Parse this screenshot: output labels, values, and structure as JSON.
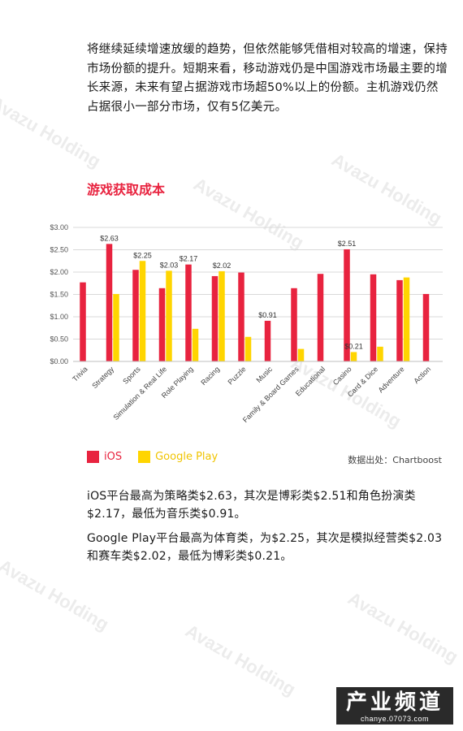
{
  "intro_text": "将继续延续增速放缓的趋势，但依然能够凭借相对较高的增速，保持市场份额的提升。短期来看，移动游戏仍是中国游戏市场最主要的增长来源，未来有望占据游戏市场超50%以上的份额。主机游戏仍然占据很小一部分市场，仅有5亿美元。",
  "section_title": "游戏获取成本",
  "chart_data": {
    "type": "bar",
    "title": "",
    "xlabel": "",
    "ylabel": "",
    "ylim": [
      0,
      3
    ],
    "yticks": [
      "$0.00",
      "$0.50",
      "$1.00",
      "$1.50",
      "$2.00",
      "$2.50",
      "$3.00"
    ],
    "grid": "horizontal",
    "legend_position": "bottom-left",
    "categories": [
      "Trivia",
      "Strategy",
      "Sports",
      "Simulation & Real Life",
      "Role Playing",
      "Racing",
      "Puzzle",
      "Music",
      "Family & Board Games",
      "Educational",
      "Casino",
      "Card & Dice",
      "Adventure",
      "Action"
    ],
    "series": [
      {
        "name": "iOS",
        "color": "#e8233f",
        "values": [
          1.77,
          2.63,
          2.05,
          1.64,
          2.17,
          1.91,
          1.99,
          0.91,
          1.64,
          1.96,
          2.51,
          1.95,
          1.82,
          1.51
        ],
        "labels": [
          "",
          "$2.63",
          "",
          "",
          "$2.17",
          "",
          "",
          "$0.91",
          "",
          "",
          "$2.51",
          "",
          "",
          ""
        ]
      },
      {
        "name": "Google Play",
        "color": "#ffd500",
        "values": [
          null,
          1.51,
          2.25,
          2.03,
          0.73,
          2.02,
          0.55,
          null,
          0.28,
          null,
          0.21,
          0.33,
          1.88,
          null
        ],
        "labels": [
          "",
          "",
          "$2.25",
          "$2.03",
          "",
          "$2.02",
          "",
          "",
          "",
          "",
          "$0.21",
          "",
          "",
          ""
        ]
      }
    ]
  },
  "legend": {
    "ios_label": "iOS",
    "gp_label": "Google Play"
  },
  "source_text": "数据出处：Chartboost",
  "para1": "iOS平台最高为策略类$2.63，其次是博彩类$2.51和角色扮演类$2.17，最低为音乐类$0.91。",
  "para2": "Google Play平台最高为体育类，为$2.25，其次是模拟经营类$2.03和赛车类$2.02，最低为博彩类$0.21。",
  "watermark": "Avazu Holding",
  "logo": {
    "main": "产业频道",
    "sub": "chanye.07073.com"
  }
}
